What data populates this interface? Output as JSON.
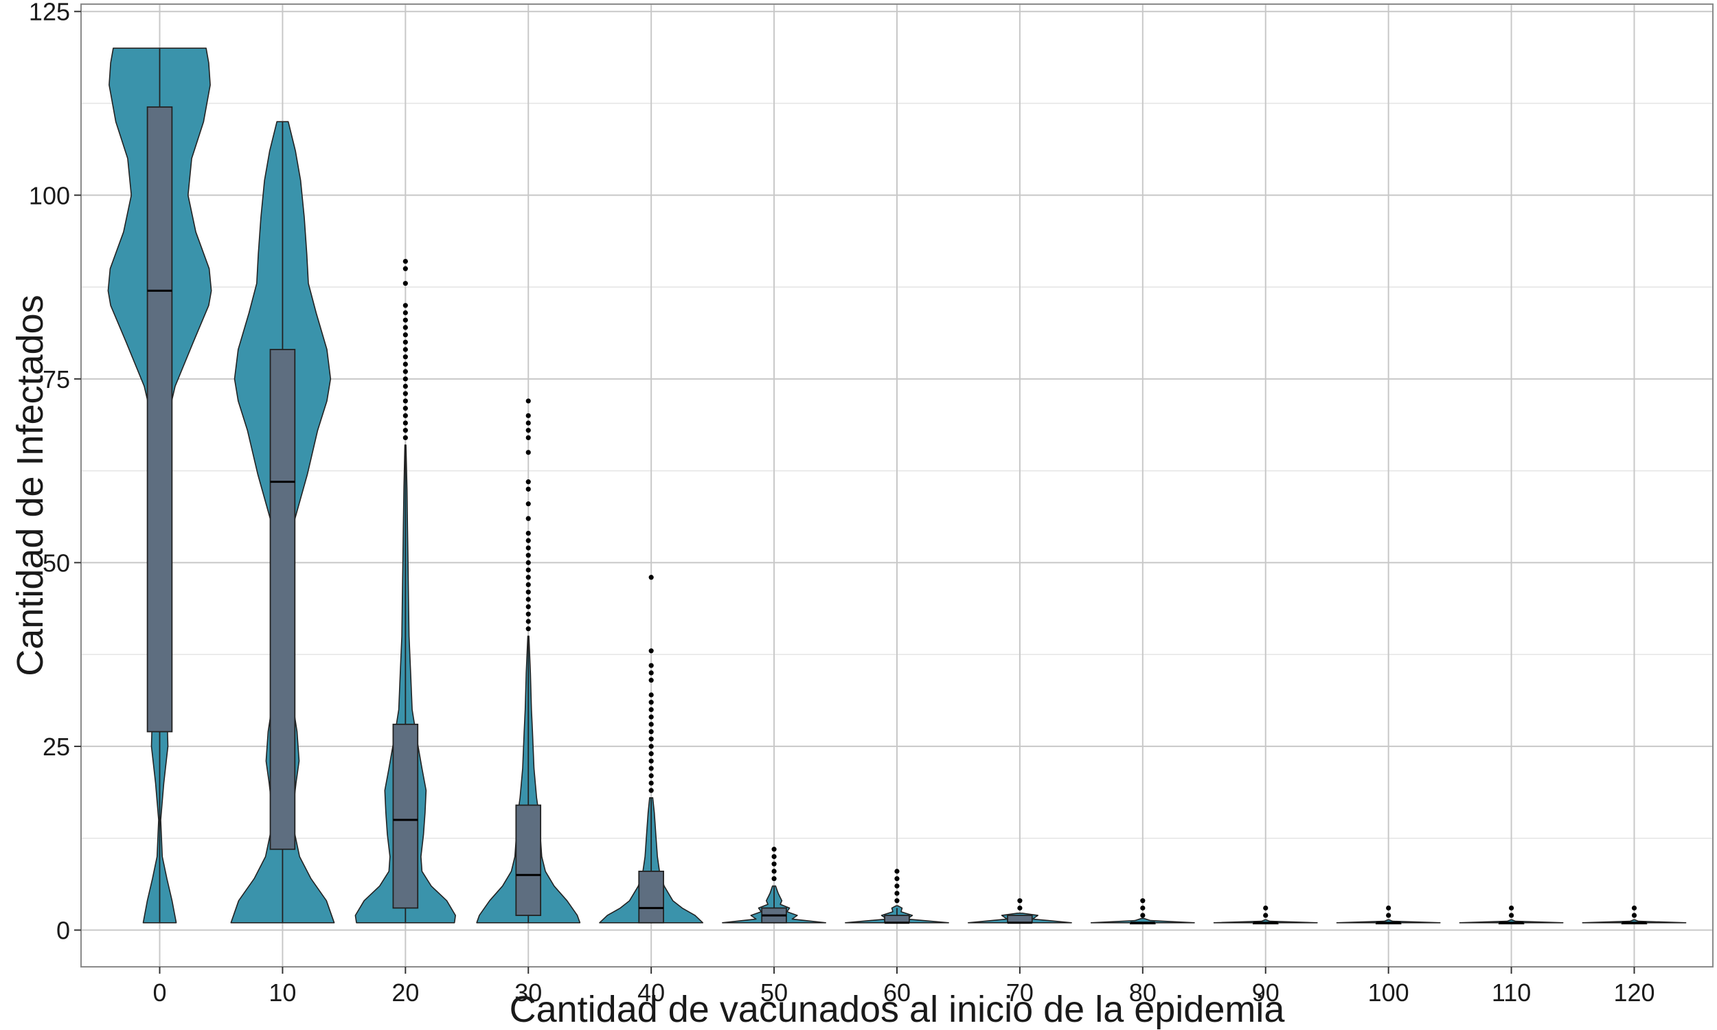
{
  "chart_data": {
    "type": "violin",
    "title": "",
    "xlabel": "Cantidad de vacunados al inicio de la epidemia",
    "ylabel": "Cantidad de Infectados",
    "ylim": [
      -5,
      126
    ],
    "yticks": [
      0,
      25,
      50,
      75,
      100,
      125
    ],
    "y_minor_ticks": [
      12.5,
      37.5,
      62.5,
      87.5,
      112.5
    ],
    "grid": true,
    "legend": "none",
    "colors": {
      "violin_fill": "#3A93AB",
      "box_fill": "#5E6E80",
      "outline": "#222222",
      "grid_major": "#c8c8c8",
      "grid_minor": "#e4e4e4",
      "panel_border": "#8a8a8a"
    },
    "categories": [
      "0",
      "10",
      "20",
      "30",
      "40",
      "50",
      "60",
      "70",
      "80",
      "90",
      "100",
      "110",
      "120"
    ],
    "groups": [
      {
        "x": "0",
        "min": 1,
        "max": 120,
        "q1": 27,
        "median": 87,
        "q3": 112,
        "whisker_low": 1,
        "whisker_high": 120,
        "outliers": [],
        "density": [
          [
            1,
            0.32
          ],
          [
            4,
            0.24
          ],
          [
            7,
            0.14
          ],
          [
            10,
            0.05
          ],
          [
            15,
            0.02
          ],
          [
            20,
            0.08
          ],
          [
            25,
            0.16
          ],
          [
            30,
            0.14
          ],
          [
            35,
            0.07
          ],
          [
            40,
            0.03
          ],
          [
            50,
            0.02
          ],
          [
            60,
            0.04
          ],
          [
            68,
            0.1
          ],
          [
            74,
            0.3
          ],
          [
            80,
            0.65
          ],
          [
            85,
            0.95
          ],
          [
            87,
            1.0
          ],
          [
            90,
            0.96
          ],
          [
            95,
            0.7
          ],
          [
            100,
            0.55
          ],
          [
            105,
            0.62
          ],
          [
            110,
            0.85
          ],
          [
            115,
            0.98
          ],
          [
            118,
            0.95
          ],
          [
            120,
            0.9
          ]
        ]
      },
      {
        "x": "10",
        "min": 1,
        "max": 110,
        "q1": 11,
        "median": 61,
        "q3": 79,
        "whisker_low": 1,
        "whisker_high": 110,
        "outliers": [],
        "density": [
          [
            1,
            1.0
          ],
          [
            4,
            0.85
          ],
          [
            7,
            0.55
          ],
          [
            10,
            0.33
          ],
          [
            15,
            0.18
          ],
          [
            20,
            0.26
          ],
          [
            23,
            0.32
          ],
          [
            27,
            0.28
          ],
          [
            32,
            0.17
          ],
          [
            40,
            0.07
          ],
          [
            47,
            0.06
          ],
          [
            55,
            0.2
          ],
          [
            62,
            0.48
          ],
          [
            68,
            0.68
          ],
          [
            72,
            0.86
          ],
          [
            75,
            0.93
          ],
          [
            79,
            0.86
          ],
          [
            84,
            0.65
          ],
          [
            88,
            0.5
          ],
          [
            92,
            0.47
          ],
          [
            97,
            0.42
          ],
          [
            102,
            0.35
          ],
          [
            106,
            0.25
          ],
          [
            110,
            0.11
          ]
        ]
      },
      {
        "x": "20",
        "min": 1,
        "max": 91,
        "q1": 3,
        "median": 15,
        "q3": 28,
        "whisker_low": 1,
        "whisker_high": 66,
        "outliers": [
          67,
          68,
          69,
          70,
          71,
          72,
          73,
          74,
          75,
          76,
          77,
          78,
          79,
          80,
          81,
          82,
          83,
          84,
          85,
          88,
          90,
          91
        ],
        "density": [
          [
            1,
            0.95
          ],
          [
            2,
            0.97
          ],
          [
            4,
            0.8
          ],
          [
            6,
            0.5
          ],
          [
            8,
            0.32
          ],
          [
            10,
            0.3
          ],
          [
            13,
            0.35
          ],
          [
            16,
            0.38
          ],
          [
            19,
            0.4
          ],
          [
            22,
            0.32
          ],
          [
            26,
            0.22
          ],
          [
            30,
            0.13
          ],
          [
            35,
            0.1
          ],
          [
            40,
            0.07
          ],
          [
            45,
            0.06
          ],
          [
            50,
            0.05
          ],
          [
            55,
            0.04
          ],
          [
            60,
            0.03
          ],
          [
            66,
            0.01
          ]
        ]
      },
      {
        "x": "30",
        "min": 1,
        "max": 72,
        "q1": 2,
        "median": 7.5,
        "q3": 17,
        "whisker_low": 1,
        "whisker_high": 40,
        "outliers": [
          41,
          42,
          43,
          44,
          45,
          46,
          47,
          48,
          49,
          50,
          51,
          52,
          53,
          54,
          56,
          58,
          60,
          61,
          65,
          67,
          68,
          69,
          70,
          72
        ],
        "density": [
          [
            1,
            1.0
          ],
          [
            2,
            0.95
          ],
          [
            4,
            0.75
          ],
          [
            6,
            0.5
          ],
          [
            8,
            0.33
          ],
          [
            10,
            0.26
          ],
          [
            12,
            0.24
          ],
          [
            15,
            0.22
          ],
          [
            18,
            0.16
          ],
          [
            22,
            0.11
          ],
          [
            27,
            0.08
          ],
          [
            30,
            0.06
          ],
          [
            35,
            0.04
          ],
          [
            40,
            0.01
          ]
        ]
      },
      {
        "x": "40",
        "min": 1,
        "max": 48,
        "q1": 1,
        "median": 3,
        "q3": 8,
        "whisker_low": 1,
        "whisker_high": 18,
        "outliers": [
          19,
          20,
          21,
          22,
          23,
          24,
          25,
          26,
          27,
          28,
          29,
          30,
          31,
          32,
          34,
          35,
          36,
          38,
          48
        ],
        "density": [
          [
            1,
            1.0
          ],
          [
            2,
            0.85
          ],
          [
            3,
            0.6
          ],
          [
            4,
            0.42
          ],
          [
            6,
            0.25
          ],
          [
            8,
            0.16
          ],
          [
            10,
            0.12
          ],
          [
            13,
            0.09
          ],
          [
            16,
            0.06
          ],
          [
            18,
            0.03
          ]
        ]
      },
      {
        "x": "50",
        "min": 1,
        "max": 11,
        "q1": 1,
        "median": 2,
        "q3": 3,
        "whisker_low": 1,
        "whisker_high": 6,
        "outliers": [
          7,
          8,
          9,
          10,
          11
        ],
        "density": [
          [
            1,
            1.0
          ],
          [
            1.5,
            0.35
          ],
          [
            2,
            0.45
          ],
          [
            2.5,
            0.25
          ],
          [
            3,
            0.3
          ],
          [
            3.5,
            0.12
          ],
          [
            4,
            0.15
          ],
          [
            5,
            0.08
          ],
          [
            6,
            0.03
          ]
        ]
      },
      {
        "x": "60",
        "min": 1,
        "max": 8,
        "q1": 1,
        "median": 1,
        "q3": 2,
        "whisker_low": 1,
        "whisker_high": 3,
        "outliers": [
          4,
          5,
          6,
          7,
          8
        ],
        "density": [
          [
            1,
            1.0
          ],
          [
            1.5,
            0.2
          ],
          [
            2,
            0.3
          ],
          [
            2.5,
            0.08
          ],
          [
            3,
            0.1
          ],
          [
            3.3,
            0.02
          ]
        ]
      },
      {
        "x": "70",
        "min": 1,
        "max": 4,
        "q1": 1,
        "median": 1,
        "q3": 2,
        "whisker_low": 1,
        "whisker_high": 2,
        "outliers": [
          3,
          4
        ],
        "density": [
          [
            1,
            1.0
          ],
          [
            1.5,
            0.25
          ],
          [
            2,
            0.35
          ],
          [
            2.3,
            0.05
          ]
        ]
      },
      {
        "x": "80",
        "min": 1,
        "max": 4,
        "q1": 1,
        "median": 1,
        "q3": 1,
        "whisker_low": 1,
        "whisker_high": 1,
        "outliers": [
          2,
          3,
          4
        ],
        "density": [
          [
            1,
            1.0
          ],
          [
            1.3,
            0.15
          ],
          [
            1.6,
            0.02
          ]
        ]
      },
      {
        "x": "90",
        "min": 1,
        "max": 3,
        "q1": 1,
        "median": 1,
        "q3": 1,
        "whisker_low": 1,
        "whisker_high": 1,
        "outliers": [
          2,
          3
        ],
        "density": [
          [
            1,
            1.0
          ],
          [
            1.2,
            0.08
          ],
          [
            1.4,
            0.01
          ]
        ]
      },
      {
        "x": "100",
        "min": 1,
        "max": 3,
        "q1": 1,
        "median": 1,
        "q3": 1,
        "whisker_low": 1,
        "whisker_high": 1,
        "outliers": [
          2,
          3
        ],
        "density": [
          [
            1,
            1.0
          ],
          [
            1.2,
            0.08
          ],
          [
            1.4,
            0.01
          ]
        ]
      },
      {
        "x": "110",
        "min": 1,
        "max": 3,
        "q1": 1,
        "median": 1,
        "q3": 1,
        "whisker_low": 1,
        "whisker_high": 1,
        "outliers": [
          2,
          3
        ],
        "density": [
          [
            1,
            1.0
          ],
          [
            1.2,
            0.08
          ],
          [
            1.4,
            0.01
          ]
        ]
      },
      {
        "x": "120",
        "min": 1,
        "max": 3,
        "q1": 1,
        "median": 1,
        "q3": 1,
        "whisker_low": 1,
        "whisker_high": 1,
        "outliers": [
          2,
          3
        ],
        "density": [
          [
            1,
            1.0
          ],
          [
            1.2,
            0.08
          ],
          [
            1.4,
            0.01
          ]
        ]
      }
    ]
  }
}
